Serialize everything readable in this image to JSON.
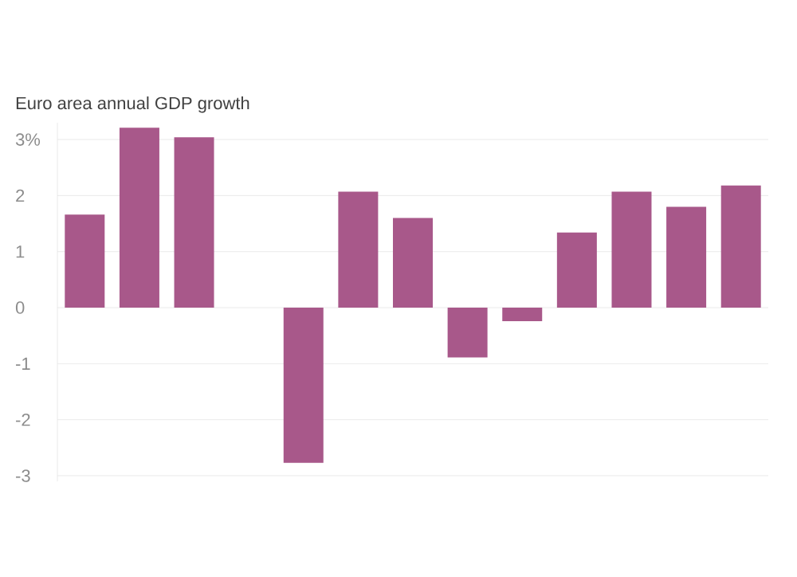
{
  "chart_data": {
    "type": "bar",
    "title": "Euro area annual GDP growth",
    "categories": [
      null,
      null,
      null,
      null,
      null,
      null,
      null,
      null,
      null,
      null,
      null,
      null,
      null
    ],
    "values": [
      1.66,
      3.21,
      3.04,
      null,
      -2.77,
      2.07,
      1.6,
      -0.89,
      -0.24,
      1.34,
      2.07,
      1.8,
      2.18
    ],
    "color": "#a8588a",
    "ylim": [
      -3.1,
      3.3
    ],
    "yticks": [
      {
        "value": 3,
        "label": "3%"
      },
      2,
      1,
      0,
      -1,
      -2,
      -3
    ],
    "grid": "y"
  }
}
